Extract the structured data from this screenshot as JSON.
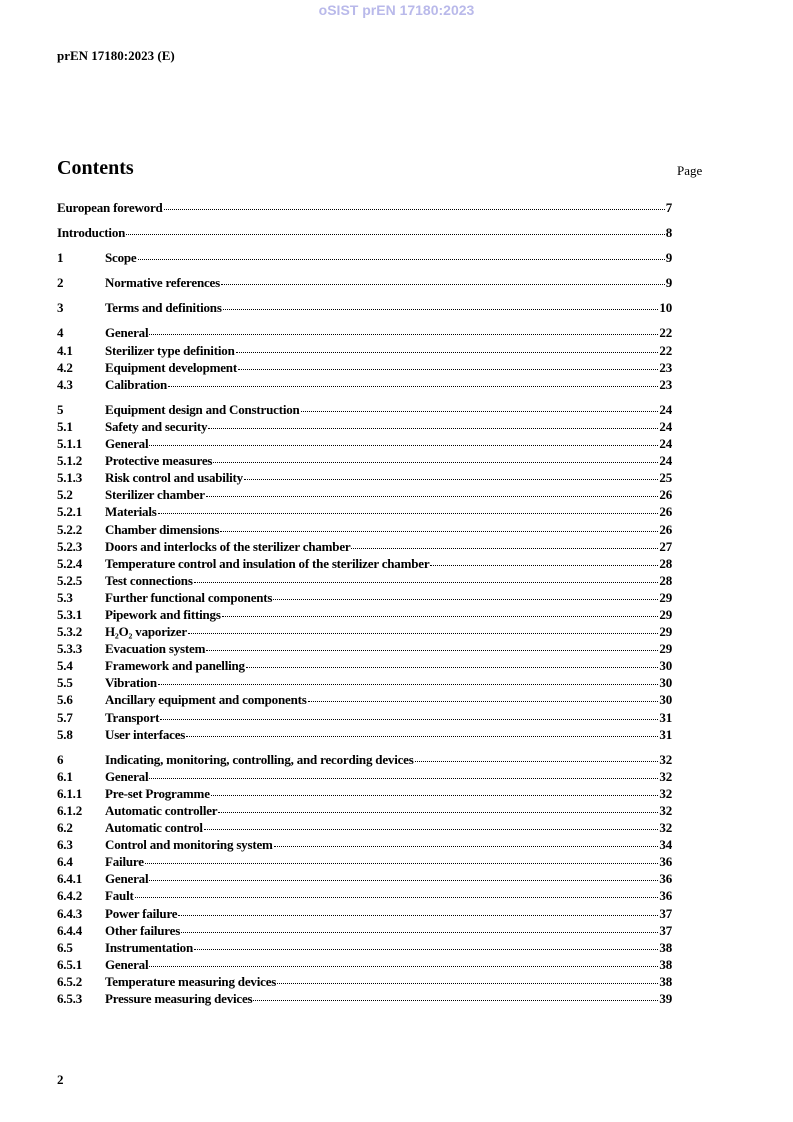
{
  "watermark": "oSIST prEN 17180:2023",
  "header": "prEN 17180:2023 (E)",
  "contents_title": "Contents",
  "page_label": "Page",
  "toc_groups": [
    [
      {
        "num": "",
        "title": "European foreword",
        "page": "7"
      }
    ],
    [
      {
        "num": "",
        "title": "Introduction",
        "page": "8"
      }
    ],
    [
      {
        "num": "1",
        "title": "Scope",
        "page": "9"
      }
    ],
    [
      {
        "num": "2",
        "title": "Normative references",
        "page": "9"
      }
    ],
    [
      {
        "num": "3",
        "title": "Terms and definitions",
        "page": "10"
      }
    ],
    [
      {
        "num": "4",
        "title": "General",
        "page": "22"
      },
      {
        "num": "4.1",
        "title": "Sterilizer type definition",
        "page": "22"
      },
      {
        "num": "4.2",
        "title": "Equipment development",
        "page": "23"
      },
      {
        "num": "4.3",
        "title": "Calibration",
        "page": "23"
      }
    ],
    [
      {
        "num": "5",
        "title": "Equipment design and Construction",
        "page": "24"
      },
      {
        "num": "5.1",
        "title": "Safety and security",
        "page": "24"
      },
      {
        "num": "5.1.1",
        "title": "General",
        "page": "24"
      },
      {
        "num": "5.1.2",
        "title": "Protective measures",
        "page": "24"
      },
      {
        "num": "5.1.3",
        "title": "Risk control and usability",
        "page": "25"
      },
      {
        "num": "5.2",
        "title": "Sterilizer chamber",
        "page": "26"
      },
      {
        "num": "5.2.1",
        "title": "Materials",
        "page": "26"
      },
      {
        "num": "5.2.2",
        "title": "Chamber dimensions",
        "page": "26"
      },
      {
        "num": "5.2.3",
        "title": "Doors and interlocks of the sterilizer chamber",
        "page": "27"
      },
      {
        "num": "5.2.4",
        "title": "Temperature control and insulation of the sterilizer chamber",
        "page": "28"
      },
      {
        "num": "5.2.5",
        "title": "Test connections",
        "page": "28"
      },
      {
        "num": "5.3",
        "title": "Further functional components",
        "page": "29"
      },
      {
        "num": "5.3.1",
        "title": "Pipework and fittings",
        "page": "29"
      },
      {
        "num": "5.3.2",
        "title": "H₂O₂ vaporizer",
        "page": "29"
      },
      {
        "num": "5.3.3",
        "title": "Evacuation system",
        "page": "29"
      },
      {
        "num": "5.4",
        "title": "Framework and panelling",
        "page": "30"
      },
      {
        "num": "5.5",
        "title": "Vibration",
        "page": "30"
      },
      {
        "num": "5.6",
        "title": "Ancillary equipment and components",
        "page": "30"
      },
      {
        "num": "5.7",
        "title": "Transport",
        "page": "31"
      },
      {
        "num": "5.8",
        "title": "User interfaces",
        "page": "31"
      }
    ],
    [
      {
        "num": "6",
        "title": "Indicating, monitoring, controlling, and recording devices",
        "page": "32"
      },
      {
        "num": "6.1",
        "title": "General",
        "page": "32"
      },
      {
        "num": "6.1.1",
        "title": "Pre-set Programme",
        "page": "32"
      },
      {
        "num": "6.1.2",
        "title": "Automatic controller",
        "page": "32"
      },
      {
        "num": "6.2",
        "title": "Automatic control",
        "page": "32"
      },
      {
        "num": "6.3",
        "title": "Control and monitoring system",
        "page": "34"
      },
      {
        "num": "6.4",
        "title": "Failure",
        "page": "36"
      },
      {
        "num": "6.4.1",
        "title": "General",
        "page": "36"
      },
      {
        "num": "6.4.2",
        "title": "Fault",
        "page": "36"
      },
      {
        "num": "6.4.3",
        "title": "Power failure",
        "page": "37"
      },
      {
        "num": "6.4.4",
        "title": "Other failures",
        "page": "37"
      },
      {
        "num": "6.5",
        "title": "Instrumentation",
        "page": "38"
      },
      {
        "num": "6.5.1",
        "title": "General",
        "page": "38"
      },
      {
        "num": "6.5.2",
        "title": "Temperature measuring devices",
        "page": "38"
      },
      {
        "num": "6.5.3",
        "title": "Pressure measuring devices",
        "page": "39"
      }
    ]
  ],
  "page_number": "2"
}
